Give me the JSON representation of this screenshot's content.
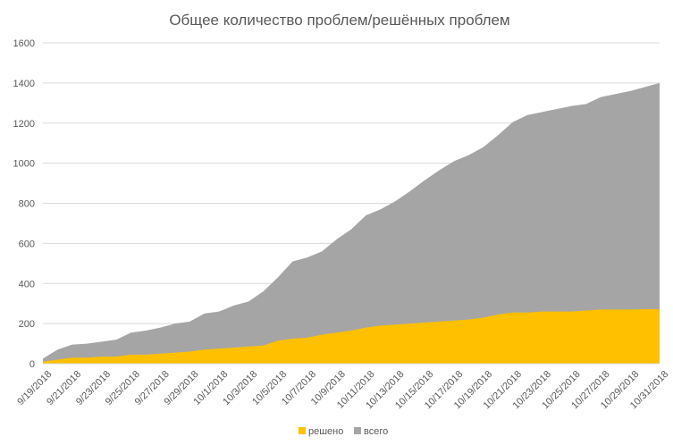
{
  "chart_data": {
    "type": "area",
    "title": "Общее количество проблем/решённых проблем",
    "xlabel": "",
    "ylabel": "",
    "ylim": [
      0,
      1600
    ],
    "yticks": [
      0,
      200,
      400,
      600,
      800,
      1000,
      1200,
      1400,
      1600
    ],
    "grid": true,
    "legend_position": "bottom",
    "x": [
      "9/19/2018",
      "9/20/2018",
      "9/21/2018",
      "9/22/2018",
      "9/23/2018",
      "9/24/2018",
      "9/25/2018",
      "9/26/2018",
      "9/27/2018",
      "9/28/2018",
      "9/29/2018",
      "9/30/2018",
      "10/1/2018",
      "10/2/2018",
      "10/3/2018",
      "10/4/2018",
      "10/5/2018",
      "10/6/2018",
      "10/7/2018",
      "10/8/2018",
      "10/9/2018",
      "10/10/2018",
      "10/11/2018",
      "10/12/2018",
      "10/13/2018",
      "10/14/2018",
      "10/15/2018",
      "10/16/2018",
      "10/17/2018",
      "10/18/2018",
      "10/19/2018",
      "10/20/2018",
      "10/21/2018",
      "10/22/2018",
      "10/23/2018",
      "10/24/2018",
      "10/25/2018",
      "10/26/2018",
      "10/27/2018",
      "10/28/2018",
      "10/29/2018",
      "10/30/2018",
      "10/31/2018"
    ],
    "x_tick_labels": [
      "9/19/2018",
      "9/21/2018",
      "9/23/2018",
      "9/25/2018",
      "9/27/2018",
      "9/29/2018",
      "10/1/2018",
      "10/3/2018",
      "10/5/2018",
      "10/7/2018",
      "10/9/2018",
      "10/11/2018",
      "10/13/2018",
      "10/15/2018",
      "10/17/2018",
      "10/19/2018",
      "10/21/2018",
      "10/23/2018",
      "10/25/2018",
      "10/27/2018",
      "10/29/2018",
      "10/31/2018"
    ],
    "series": [
      {
        "name": "всего",
        "color": "#a5a5a5",
        "values": [
          25,
          70,
          95,
          100,
          110,
          120,
          155,
          165,
          180,
          200,
          210,
          250,
          260,
          290,
          310,
          360,
          430,
          510,
          530,
          560,
          620,
          670,
          740,
          770,
          810,
          860,
          915,
          965,
          1010,
          1040,
          1080,
          1140,
          1205,
          1240,
          1255,
          1270,
          1285,
          1295,
          1330,
          1345,
          1360,
          1380,
          1400
        ]
      },
      {
        "name": "решено",
        "color": "#ffc000",
        "values": [
          10,
          20,
          30,
          30,
          35,
          35,
          45,
          45,
          50,
          55,
          60,
          70,
          75,
          80,
          85,
          90,
          115,
          125,
          130,
          145,
          155,
          165,
          180,
          190,
          195,
          200,
          205,
          210,
          215,
          220,
          230,
          245,
          255,
          255,
          260,
          260,
          260,
          265,
          270,
          270,
          270,
          272,
          272
        ]
      }
    ]
  }
}
